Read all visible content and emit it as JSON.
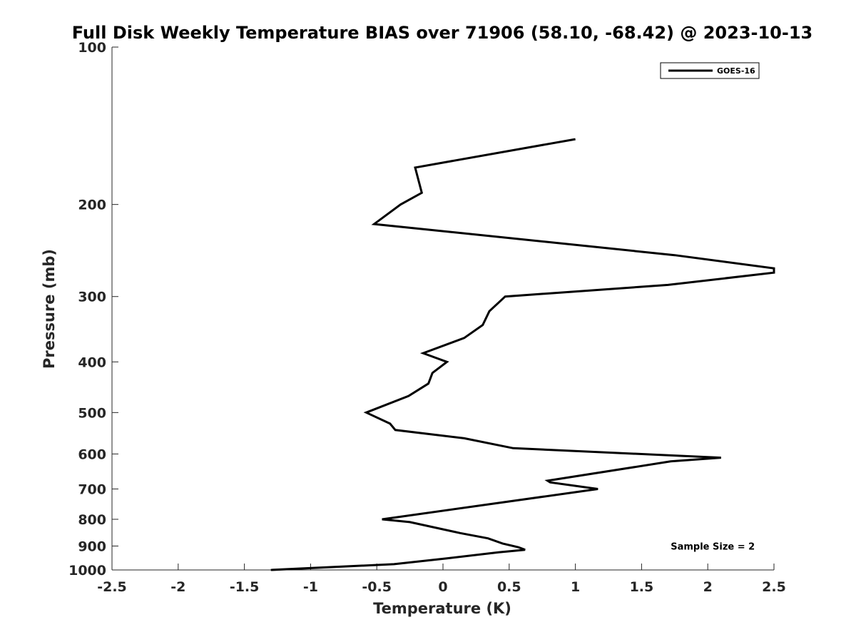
{
  "chart_data": {
    "type": "line",
    "title": "Full Disk Weekly Temperature BIAS over 71906 (58.10, -68.42) @ 2023-10-13",
    "xlabel": "Temperature (K)",
    "ylabel": "Pressure (mb)",
    "xlim": [
      -2.5,
      2.5
    ],
    "ylim": [
      1000,
      100
    ],
    "yscale": "log",
    "x_ticks": [
      -2.5,
      -2,
      -1.5,
      -1,
      -0.5,
      0,
      0.5,
      1,
      1.5,
      2,
      2.5
    ],
    "x_tick_labels": [
      "-2.5",
      "-2",
      "-1.5",
      "-1",
      "-0.5",
      "0",
      "0.5",
      "1",
      "1.5",
      "2",
      "2.5"
    ],
    "y_ticks": [
      100,
      200,
      300,
      400,
      500,
      600,
      700,
      800,
      900,
      1000
    ],
    "y_tick_labels": [
      "100",
      "200",
      "300",
      "400",
      "500",
      "600",
      "700",
      "800",
      "900",
      "1000"
    ],
    "grid": false,
    "legend_position": "top-right",
    "series": [
      {
        "name": "GOES-16",
        "color": "#000000",
        "points": [
          {
            "t": 1.0,
            "p": 150
          },
          {
            "t": -0.21,
            "p": 170
          },
          {
            "t": -0.16,
            "p": 190
          },
          {
            "t": -0.32,
            "p": 200
          },
          {
            "t": -0.52,
            "p": 218
          },
          {
            "t": 1.75,
            "p": 250
          },
          {
            "t": 2.5,
            "p": 265
          },
          {
            "t": 2.5,
            "p": 270
          },
          {
            "t": 1.7,
            "p": 285
          },
          {
            "t": 0.47,
            "p": 300
          },
          {
            "t": 0.35,
            "p": 320
          },
          {
            "t": 0.3,
            "p": 340
          },
          {
            "t": 0.16,
            "p": 360
          },
          {
            "t": -0.15,
            "p": 385
          },
          {
            "t": 0.03,
            "p": 400
          },
          {
            "t": -0.08,
            "p": 420
          },
          {
            "t": -0.11,
            "p": 440
          },
          {
            "t": -0.26,
            "p": 465
          },
          {
            "t": -0.58,
            "p": 500
          },
          {
            "t": -0.4,
            "p": 525
          },
          {
            "t": -0.36,
            "p": 540
          },
          {
            "t": 0.16,
            "p": 560
          },
          {
            "t": 0.53,
            "p": 585
          },
          {
            "t": 2.1,
            "p": 610
          },
          {
            "t": 1.72,
            "p": 620
          },
          {
            "t": 0.79,
            "p": 675
          },
          {
            "t": 0.81,
            "p": 680
          },
          {
            "t": 1.17,
            "p": 700
          },
          {
            "t": -0.46,
            "p": 800
          },
          {
            "t": -0.25,
            "p": 810
          },
          {
            "t": 0.13,
            "p": 850
          },
          {
            "t": 0.34,
            "p": 870
          },
          {
            "t": 0.45,
            "p": 890
          },
          {
            "t": 0.57,
            "p": 905
          },
          {
            "t": 0.62,
            "p": 915
          },
          {
            "t": 0.42,
            "p": 925
          },
          {
            "t": 0.03,
            "p": 950
          },
          {
            "t": -0.37,
            "p": 975
          },
          {
            "t": -1.3,
            "p": 1000
          }
        ]
      }
    ],
    "annotations": [
      {
        "text": "Sample Size = 2",
        "t": 1.72,
        "p": 900
      }
    ]
  }
}
